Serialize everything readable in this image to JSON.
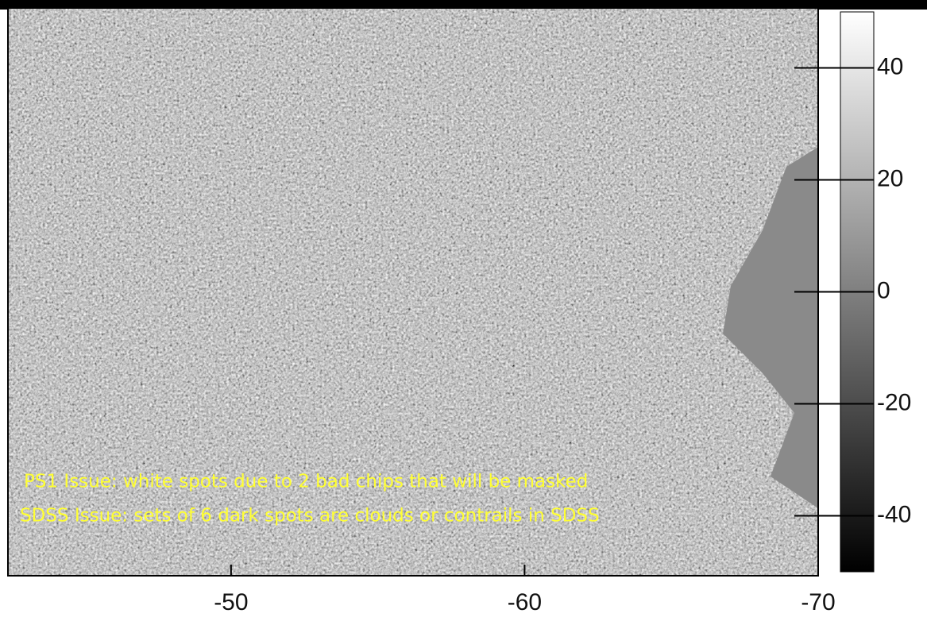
{
  "chart_data": {
    "type": "heatmap",
    "xlim": [
      -42.4,
      -70
    ],
    "xticks": [
      -50,
      -60,
      -70
    ],
    "clim": [
      -50,
      50
    ],
    "cticks": [
      40,
      20,
      0,
      -20,
      -40
    ],
    "annotations": [
      "PS1 Issue: white spots due to 2 bad chips that will be masked",
      "SDSS Issue: sets of 6 dark spots are clouds or contrails in SDSS"
    ]
  }
}
